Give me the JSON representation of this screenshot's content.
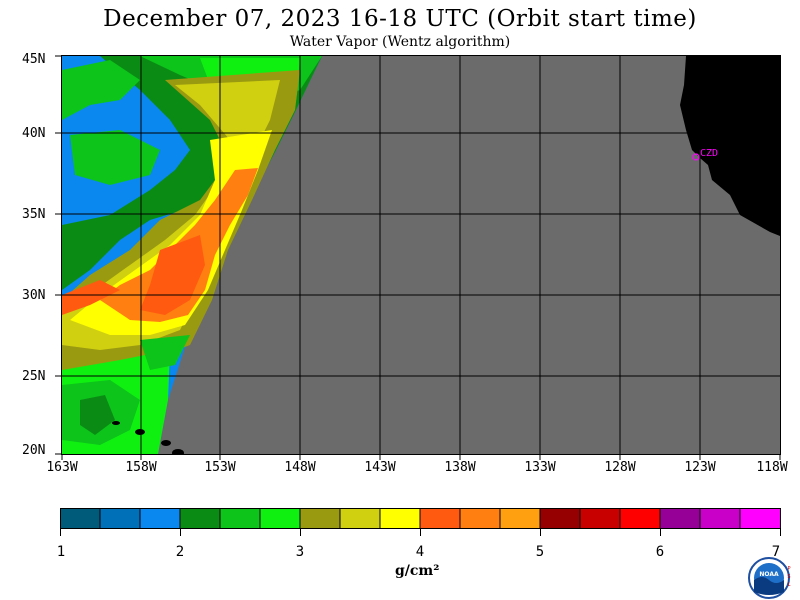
{
  "title": "December 07, 2023  16-18 UTC  (Orbit start time)",
  "subtitle": "Water Vapor (Wentz algorithm)",
  "lat_labels": [
    "45N",
    "40N",
    "35N",
    "30N",
    "25N",
    "20N"
  ],
  "lon_labels": [
    "163W",
    "158W",
    "153W",
    "148W",
    "143W",
    "138W",
    "133W",
    "128W",
    "123W",
    "118W"
  ],
  "station_label": "CZD",
  "colorbar": {
    "colors": [
      "#005a7a",
      "#0070b8",
      "#0a88f0",
      "#0a8c14",
      "#0cc41a",
      "#10f010",
      "#9a9a10",
      "#d0d010",
      "#ffff00",
      "#ff5a10",
      "#ff8010",
      "#ffa010",
      "#960000",
      "#c80000",
      "#ff0000",
      "#960096",
      "#c800c8",
      "#ff00ff"
    ],
    "tick_labels": [
      "1",
      "2",
      "3",
      "4",
      "5",
      "6",
      "7"
    ],
    "unit": "g/cm²"
  },
  "colors": {
    "no_data": "#6b6b6b",
    "land": "#000000",
    "grid": "#000000",
    "station": "#ff00ff"
  },
  "logo": {
    "icon": "noaa-logo",
    "text": "NOAA"
  }
}
